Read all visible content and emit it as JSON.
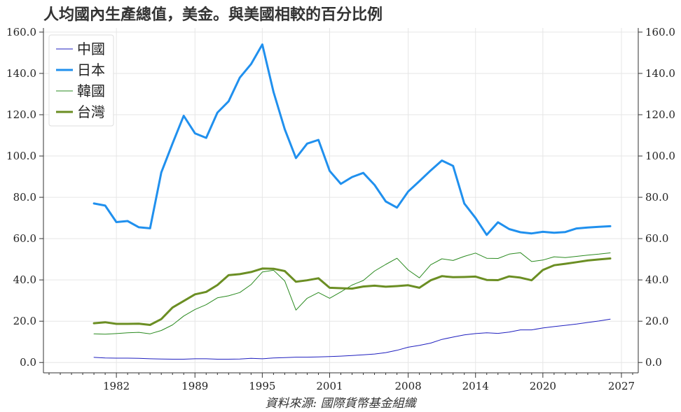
{
  "chart_data": {
    "type": "line",
    "title": "人均國內生產總值，美金。與美國相較的百分比例",
    "source": "資料來源: 國際貨幣基金組織",
    "x": [
      1980,
      1981,
      1982,
      1983,
      1984,
      1985,
      1986,
      1987,
      1988,
      1989,
      1990,
      1991,
      1992,
      1993,
      1994,
      1995,
      1996,
      1997,
      1998,
      1999,
      2000,
      2001,
      2002,
      2003,
      2004,
      2005,
      2006,
      2007,
      2008,
      2009,
      2010,
      2011,
      2012,
      2013,
      2014,
      2015,
      2016,
      2017,
      2018,
      2019,
      2020,
      2021,
      2022,
      2023,
      2024,
      2025,
      2026
    ],
    "xticks": [
      1982,
      1989,
      1995,
      2001,
      2008,
      2014,
      2020,
      2027
    ],
    "xlim": [
      1975.5,
      2028.5
    ],
    "yticks": [
      0,
      20,
      40,
      60,
      80,
      100,
      120,
      140,
      160
    ],
    "ytick_labels": [
      "0.0",
      "20.0",
      "40.0",
      "60.0",
      "80.0",
      "100.0",
      "120.0",
      "140.0",
      "160.0"
    ],
    "ylim": [
      -5,
      162
    ],
    "grid": true,
    "legend_position": "top-left",
    "series": [
      {
        "name": "中國",
        "color": "#1f1fbf",
        "width": 1,
        "values": [
          2.5,
          2.2,
          2.1,
          2.1,
          2.0,
          1.8,
          1.7,
          1.6,
          1.6,
          1.8,
          1.8,
          1.6,
          1.6,
          1.7,
          2.0,
          1.8,
          2.2,
          2.4,
          2.6,
          2.6,
          2.7,
          2.9,
          3.1,
          3.4,
          3.7,
          4.1,
          4.8,
          5.9,
          7.4,
          8.3,
          9.4,
          11.2,
          12.3,
          13.4,
          14.0,
          14.4,
          14.1,
          14.7,
          15.8,
          15.8,
          16.7,
          17.4,
          18.0,
          18.6,
          19.4,
          20.1,
          21.0
        ]
      },
      {
        "name": "日本",
        "color": "#2090ee",
        "width": 3,
        "values": [
          77,
          76,
          68,
          68.5,
          65.5,
          65,
          92,
          106,
          119.5,
          111,
          108.8,
          121,
          126.5,
          138,
          144.5,
          154,
          131,
          113,
          99,
          106,
          107.8,
          92.8,
          86.5,
          89.8,
          91.8,
          86,
          78,
          75,
          82.8,
          87.8,
          93,
          97.8,
          95.2,
          77,
          70,
          61.8,
          67.9,
          64.6,
          63.1,
          62.5,
          63.3,
          62.8,
          63.2,
          64.9,
          65.4,
          65.7,
          66
        ]
      },
      {
        "name": "韓國",
        "color": "#2a8a1f",
        "width": 1,
        "values": [
          13.9,
          13.7,
          14.0,
          14.4,
          14.6,
          13.9,
          15.5,
          18.2,
          22.5,
          25.7,
          28.0,
          31.3,
          32.3,
          33.9,
          37.7,
          43.8,
          44.7,
          39.5,
          25.4,
          31.1,
          33.9,
          31.1,
          34.2,
          37.5,
          39.7,
          44.3,
          47.5,
          50.5,
          44.8,
          41.0,
          47.3,
          50.2,
          49.4,
          51.4,
          53.0,
          50.5,
          50.4,
          52.5,
          53.2,
          48.9,
          49.6,
          51.2,
          50.8,
          51.4,
          52.0,
          52.5,
          53.1
        ]
      },
      {
        "name": "台灣",
        "color": "#6b8e23",
        "width": 3,
        "values": [
          19,
          19.5,
          18.7,
          18.7,
          18.8,
          18.2,
          21,
          26.6,
          29.8,
          33,
          34.2,
          37.5,
          42.3,
          42.8,
          43.8,
          45.5,
          45.4,
          44.3,
          39.1,
          39.8,
          40.8,
          36.2,
          36,
          35.8,
          36.8,
          37.2,
          36.7,
          37,
          37.4,
          36.2,
          39.8,
          41.8,
          41.3,
          41.4,
          41.6,
          40,
          39.9,
          41.7,
          41.1,
          39.8,
          44.8,
          47.1,
          47.8,
          48.6,
          49.4,
          49.9,
          50.4
        ]
      }
    ]
  }
}
